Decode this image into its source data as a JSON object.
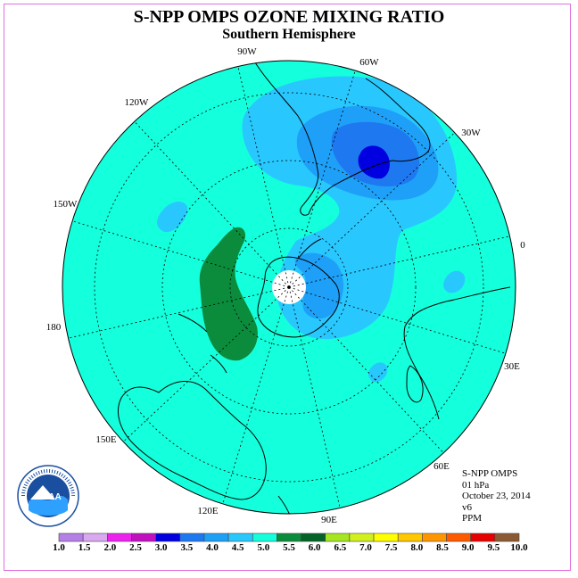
{
  "title": "S-NPP OMPS OZONE MIXING RATIO",
  "subtitle": "Southern Hemisphere",
  "info": {
    "instrument": "S-NPP OMPS",
    "level": "01 hPa",
    "date": "October 23, 2014",
    "version": "v6",
    "units": "PPM"
  },
  "logo": {
    "name": "NOAA",
    "ring_text": "NATIONAL OCEANIC AND ATMOSPHERIC ADMINISTRATION U.S. DEPARTMENT OF COMMERCE"
  },
  "longitude_labels": [
    "90W",
    "60W",
    "30W",
    "0",
    "30E",
    "60E",
    "90E",
    "120E",
    "150E",
    "180",
    "150W",
    "120W"
  ],
  "colorbar": {
    "labels": [
      "1.0",
      "1.5",
      "2.0",
      "2.5",
      "3.0",
      "3.5",
      "4.0",
      "4.5",
      "5.0",
      "5.5",
      "6.0",
      "6.5",
      "7.0",
      "7.5",
      "8.0",
      "8.5",
      "9.0",
      "9.5",
      "10.0"
    ],
    "colors": [
      "#b57fe8",
      "#d9a8f0",
      "#ee22ee",
      "#c010c0",
      "#0000e0",
      "#1e78f0",
      "#1ea0f8",
      "#28c8ff",
      "#14ffdc",
      "#0b8c3c",
      "#046428",
      "#a6e61e",
      "#d2f01e",
      "#ffff00",
      "#ffc800",
      "#ff9600",
      "#ff5a00",
      "#e60000",
      "#8c5a32"
    ]
  },
  "map_colors": {
    "background": "#14ffdc",
    "level_4_0": "#28c8ff",
    "level_3_5": "#1ea0f8",
    "level_3_0": "#1e78f0",
    "level_2_5": "#0000e0",
    "level_5_5": "#0b8c3c",
    "polar_night": "#ffffff"
  }
}
